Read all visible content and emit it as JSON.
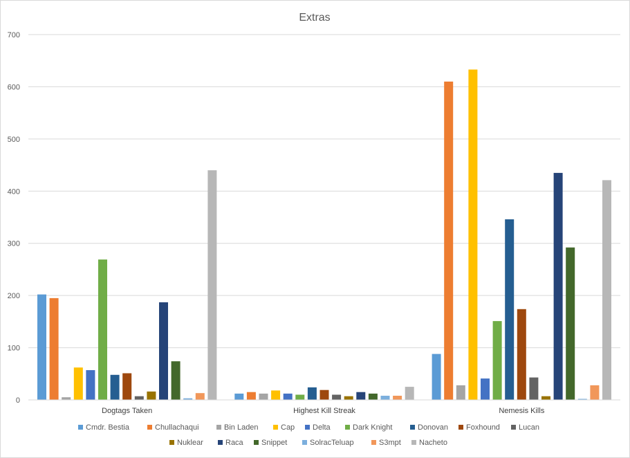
{
  "chart_data": {
    "type": "bar",
    "title": "Extras",
    "xlabel": "",
    "ylabel": "",
    "ylim": [
      0,
      700
    ],
    "yticks": [
      0,
      100,
      200,
      300,
      400,
      500,
      600,
      700
    ],
    "grid": true,
    "legend_position": "bottom",
    "categories": [
      "Dogtags Taken",
      "Highest Kill Streak",
      "Nemesis Kills"
    ],
    "series": [
      {
        "name": "Cmdr. Bestia",
        "color": "#5b9bd5",
        "values": [
          202,
          12,
          88
        ]
      },
      {
        "name": "Chullachaqui",
        "color": "#ed7d31",
        "values": [
          195,
          15,
          610
        ]
      },
      {
        "name": "Bin Laden",
        "color": "#a5a5a5",
        "values": [
          5,
          12,
          28
        ]
      },
      {
        "name": "Cap",
        "color": "#ffc000",
        "values": [
          62,
          18,
          633
        ]
      },
      {
        "name": "Delta",
        "color": "#4472c4",
        "values": [
          57,
          12,
          41
        ]
      },
      {
        "name": "Dark Knight",
        "color": "#70ad47",
        "values": [
          269,
          10,
          151
        ]
      },
      {
        "name": "Donovan",
        "color": "#255e91",
        "values": [
          48,
          24,
          346
        ]
      },
      {
        "name": "Foxhound",
        "color": "#9e480e",
        "values": [
          51,
          19,
          174
        ]
      },
      {
        "name": "Lucan",
        "color": "#636363",
        "values": [
          7,
          10,
          43
        ]
      },
      {
        "name": "Nuklear",
        "color": "#997300",
        "values": [
          16,
          7,
          7
        ]
      },
      {
        "name": "Raca",
        "color": "#264478",
        "values": [
          187,
          15,
          435
        ]
      },
      {
        "name": "Snippet",
        "color": "#43682b",
        "values": [
          74,
          12,
          292
        ]
      },
      {
        "name": "SolracTeluap",
        "color": "#7cafdd",
        "values": [
          3,
          8,
          2
        ]
      },
      {
        "name": "S3mpt",
        "color": "#f1975a",
        "values": [
          13,
          8,
          28
        ]
      },
      {
        "name": "Nacheto",
        "color": "#b7b7b7",
        "values": [
          440,
          25,
          421
        ]
      }
    ]
  }
}
